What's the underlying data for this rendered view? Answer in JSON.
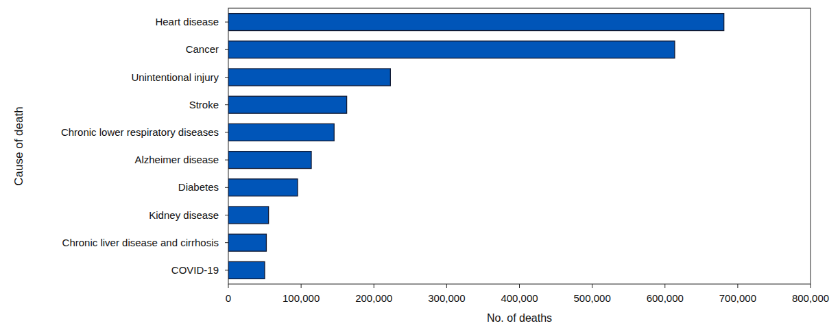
{
  "chart_data": {
    "type": "bar",
    "orientation": "horizontal",
    "x_label": "No. of deaths",
    "y_label": "Cause of death",
    "categories": [
      "Heart disease",
      "Cancer",
      "Unintentional injury",
      "Stroke",
      "Chronic lower respiratory diseases",
      "Alzheimer disease",
      "Diabetes",
      "Kidney disease",
      "Chronic liver disease and cirrhosis",
      "COVID-19"
    ],
    "values": [
      680981,
      613352,
      222698,
      162639,
      145357,
      114034,
      95190,
      55253,
      52222,
      49932
    ],
    "color": "#0055b8",
    "xlim": [
      0,
      800000
    ],
    "xticks": [
      0,
      {
        "value": 100000,
        "label": "100,000"
      },
      {
        "value": 200000,
        "label": "200,000"
      },
      {
        "value": 300000,
        "label": "300,000"
      },
      {
        "value": 400000,
        "label": "400,000"
      },
      {
        "value": 500000,
        "label": "500,000"
      },
      {
        "value": 600000,
        "label": "600,000"
      },
      {
        "value": 700000,
        "label": "700,000"
      },
      {
        "value": 800000,
        "label": "800,000"
      }
    ],
    "grid": false
  }
}
